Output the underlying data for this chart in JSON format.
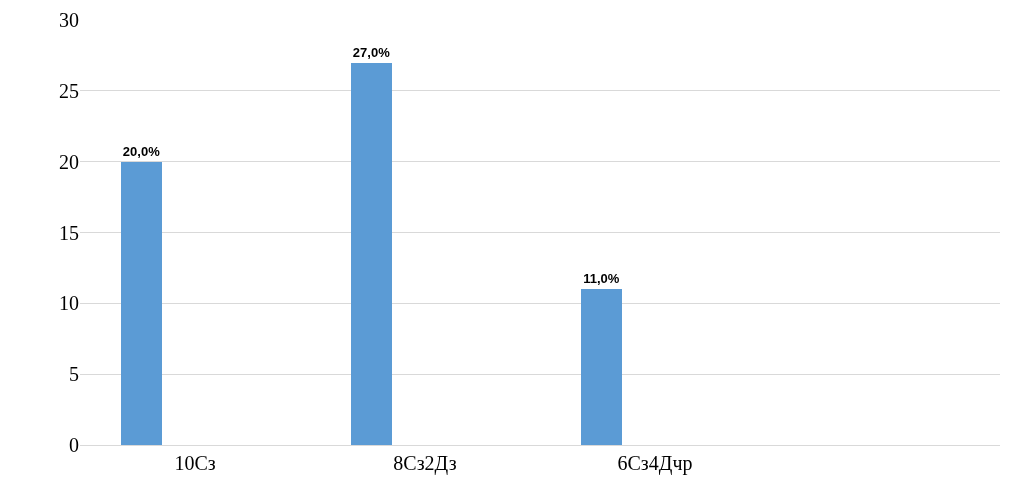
{
  "chart_data": {
    "type": "bar",
    "categories": [
      "10Сз",
      "8Сз2Дз",
      "6Сз4Дчр",
      null
    ],
    "values": [
      20,
      27,
      11,
      null
    ],
    "value_labels": [
      "20,0%",
      "27,0%",
      "11,0%",
      null
    ],
    "color": "#5b9bd5",
    "ylim": [
      0,
      30
    ],
    "yticks": [
      0,
      5,
      10,
      15,
      20,
      25,
      30
    ],
    "grid": "y"
  }
}
